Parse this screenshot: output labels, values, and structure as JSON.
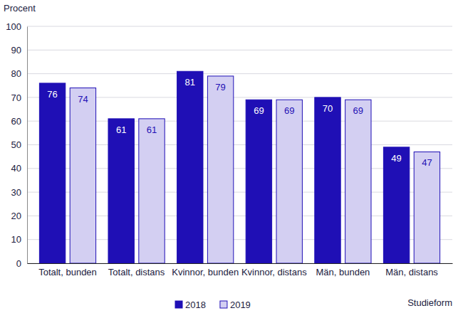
{
  "chart_data": {
    "type": "bar",
    "ylabel": "Procent",
    "xlabel": "Studieform",
    "categories": [
      "Totalt, bunden",
      "Totalt, distans",
      "Kvinnor, bunden",
      "Kvinnor, distans",
      "Män, bunden",
      "Män, distans"
    ],
    "series": [
      {
        "name": "2018",
        "color": "#1f0fb5",
        "values": [
          76,
          61,
          81,
          69,
          70,
          49
        ]
      },
      {
        "name": "2019",
        "color": "#d3cff2",
        "values": [
          74,
          61,
          79,
          69,
          69,
          47
        ]
      }
    ],
    "ylim": [
      0,
      100
    ],
    "yticks": [
      0,
      10,
      20,
      30,
      40,
      50,
      60,
      70,
      80,
      90,
      100
    ],
    "grid": true,
    "legend": "bottom",
    "data_labels": true
  }
}
